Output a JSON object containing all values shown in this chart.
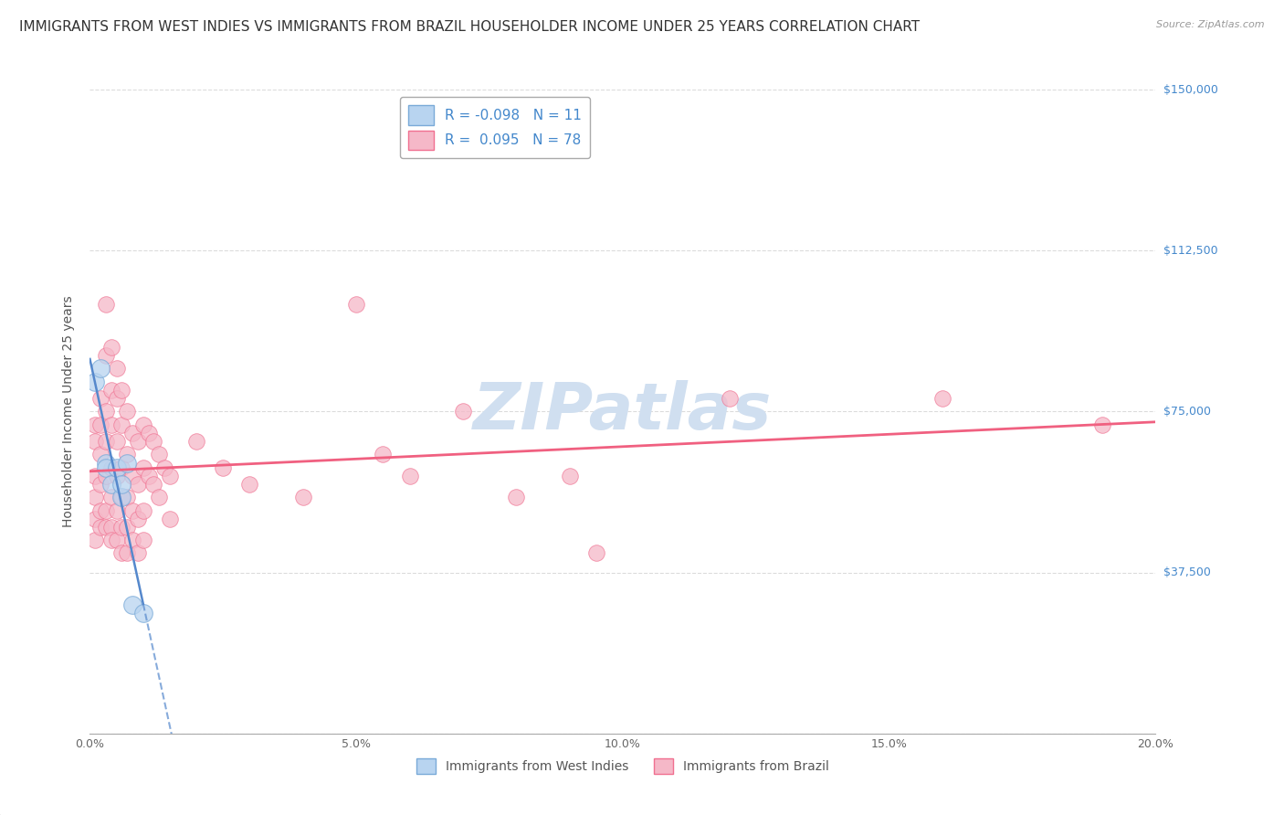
{
  "title": "IMMIGRANTS FROM WEST INDIES VS IMMIGRANTS FROM BRAZIL HOUSEHOLDER INCOME UNDER 25 YEARS CORRELATION CHART",
  "source": "Source: ZipAtlas.com",
  "ylabel": "Householder Income Under 25 years",
  "xlim": [
    0.0,
    0.2
  ],
  "ylim": [
    0,
    150000
  ],
  "yticks": [
    0,
    37500,
    75000,
    112500,
    150000
  ],
  "ytick_labels": [
    "",
    "$37,500",
    "$75,000",
    "$112,500",
    "$150,000"
  ],
  "xticks": [
    0.0,
    0.05,
    0.1,
    0.15,
    0.2
  ],
  "xtick_labels": [
    "0.0%",
    "5.0%",
    "10.0%",
    "15.0%",
    "20.0%"
  ],
  "background_color": "#ffffff",
  "grid_color": "#cccccc",
  "west_indies_color": "#b8d4f0",
  "brazil_color": "#f5b8c8",
  "west_indies_edge_color": "#7aaad8",
  "brazil_edge_color": "#f07090",
  "west_indies_line_color": "#5588cc",
  "brazil_line_color": "#f06080",
  "west_indies_R": -0.098,
  "west_indies_N": 11,
  "brazil_R": 0.095,
  "brazil_N": 78,
  "west_indies_scatter": [
    [
      0.001,
      82000
    ],
    [
      0.002,
      85000
    ],
    [
      0.003,
      63000
    ],
    [
      0.003,
      62000
    ],
    [
      0.004,
      58000
    ],
    [
      0.005,
      62000
    ],
    [
      0.006,
      55000
    ],
    [
      0.006,
      58000
    ],
    [
      0.007,
      63000
    ],
    [
      0.008,
      30000
    ],
    [
      0.01,
      28000
    ]
  ],
  "brazil_scatter": [
    [
      0.001,
      72000
    ],
    [
      0.001,
      68000
    ],
    [
      0.001,
      60000
    ],
    [
      0.001,
      55000
    ],
    [
      0.001,
      50000
    ],
    [
      0.001,
      45000
    ],
    [
      0.002,
      78000
    ],
    [
      0.002,
      72000
    ],
    [
      0.002,
      65000
    ],
    [
      0.002,
      58000
    ],
    [
      0.002,
      52000
    ],
    [
      0.002,
      48000
    ],
    [
      0.003,
      100000
    ],
    [
      0.003,
      88000
    ],
    [
      0.003,
      75000
    ],
    [
      0.003,
      68000
    ],
    [
      0.003,
      60000
    ],
    [
      0.003,
      52000
    ],
    [
      0.003,
      48000
    ],
    [
      0.004,
      90000
    ],
    [
      0.004,
      80000
    ],
    [
      0.004,
      72000
    ],
    [
      0.004,
      62000
    ],
    [
      0.004,
      55000
    ],
    [
      0.004,
      48000
    ],
    [
      0.004,
      45000
    ],
    [
      0.005,
      85000
    ],
    [
      0.005,
      78000
    ],
    [
      0.005,
      68000
    ],
    [
      0.005,
      60000
    ],
    [
      0.005,
      52000
    ],
    [
      0.005,
      45000
    ],
    [
      0.006,
      80000
    ],
    [
      0.006,
      72000
    ],
    [
      0.006,
      62000
    ],
    [
      0.006,
      55000
    ],
    [
      0.006,
      48000
    ],
    [
      0.006,
      42000
    ],
    [
      0.007,
      75000
    ],
    [
      0.007,
      65000
    ],
    [
      0.007,
      55000
    ],
    [
      0.007,
      48000
    ],
    [
      0.007,
      42000
    ],
    [
      0.008,
      70000
    ],
    [
      0.008,
      60000
    ],
    [
      0.008,
      52000
    ],
    [
      0.008,
      45000
    ],
    [
      0.009,
      68000
    ],
    [
      0.009,
      58000
    ],
    [
      0.009,
      50000
    ],
    [
      0.009,
      42000
    ],
    [
      0.01,
      72000
    ],
    [
      0.01,
      62000
    ],
    [
      0.01,
      52000
    ],
    [
      0.01,
      45000
    ],
    [
      0.011,
      70000
    ],
    [
      0.011,
      60000
    ],
    [
      0.012,
      68000
    ],
    [
      0.012,
      58000
    ],
    [
      0.013,
      65000
    ],
    [
      0.013,
      55000
    ],
    [
      0.014,
      62000
    ],
    [
      0.015,
      60000
    ],
    [
      0.015,
      50000
    ],
    [
      0.02,
      68000
    ],
    [
      0.025,
      62000
    ],
    [
      0.03,
      58000
    ],
    [
      0.04,
      55000
    ],
    [
      0.05,
      100000
    ],
    [
      0.055,
      65000
    ],
    [
      0.06,
      60000
    ],
    [
      0.07,
      75000
    ],
    [
      0.08,
      55000
    ],
    [
      0.09,
      60000
    ],
    [
      0.095,
      42000
    ],
    [
      0.12,
      78000
    ],
    [
      0.16,
      78000
    ],
    [
      0.19,
      72000
    ]
  ],
  "watermark_text": "ZIPatlas",
  "watermark_color": "#d0dff0",
  "title_fontsize": 11,
  "axis_label_fontsize": 10,
  "tick_fontsize": 9,
  "legend_fontsize": 11,
  "right_tick_color": "#4488cc"
}
